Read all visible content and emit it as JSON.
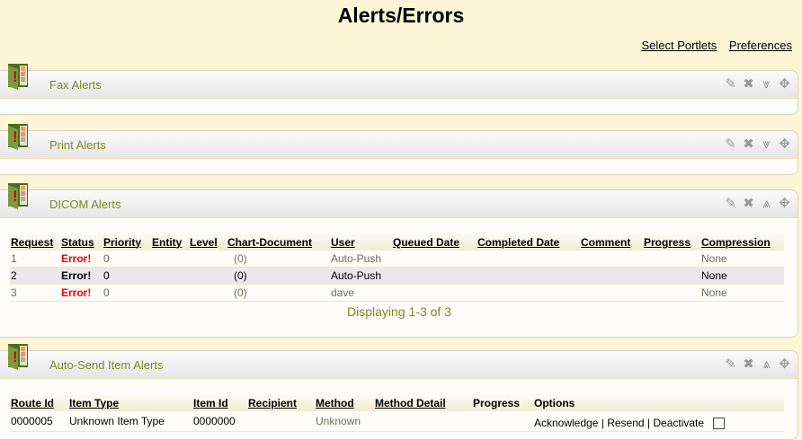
{
  "page": {
    "title": "Alerts/Errors",
    "links": [
      "Select Portlets",
      "Preferences"
    ]
  },
  "portlets": [
    {
      "title": "Fax Alerts"
    },
    {
      "title": "Print Alerts"
    },
    {
      "title": "DICOM Alerts"
    },
    {
      "title": "Auto-Send Item Alerts"
    }
  ],
  "icons": {
    "portlet": "alert-folder-icon",
    "tools": [
      "edit-icon",
      "close-icon",
      "collapse-icon",
      "move-icon"
    ]
  },
  "dicom": {
    "columns": [
      "Request",
      "Status",
      "Priority",
      "Entity",
      "Level",
      "Chart-Document",
      "User",
      "Queued Date",
      "Completed Date",
      "Comment",
      "Progress",
      "Compression"
    ],
    "rows": [
      [
        "1",
        "Error!",
        "0",
        "",
        "",
        "(0)",
        "Auto-Push",
        "",
        "",
        "",
        "",
        "None"
      ],
      [
        "2",
        "Error!",
        "0",
        "",
        "",
        "(0)",
        "Auto-Push",
        "",
        "",
        "",
        "",
        "None"
      ],
      [
        "3",
        "Error!",
        "0",
        "",
        "",
        "(0)",
        "dave",
        "",
        "",
        "",
        "",
        "None"
      ]
    ],
    "footer": "Displaying 1-3 of 3"
  },
  "autosend": {
    "columns": [
      "Route Id",
      "Item Type",
      "Item Id",
      "Recipient",
      "Method",
      "Method Detail",
      "Progress",
      "Options"
    ],
    "rows": [
      [
        "0000005",
        "Unknown Item Type",
        "0000000",
        "",
        "Unknown",
        "",
        ""
      ]
    ],
    "options": [
      "Acknowledge",
      "Resend",
      "Deactivate"
    ]
  },
  "colors": {
    "background": "#fcf5d6",
    "title_text": "#7a8a1f",
    "error": "#e00000"
  }
}
